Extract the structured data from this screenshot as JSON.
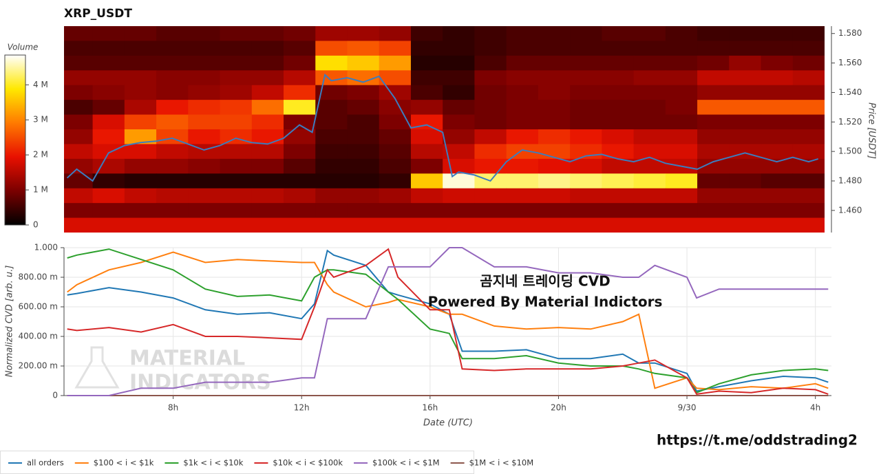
{
  "chart_data": [
    {
      "type": "heatmap",
      "title": "XRP_USDT",
      "y_label": "Price [USDT]",
      "xlim": [
        4.6,
        28.5
      ],
      "ylim": [
        1.445,
        1.585
      ],
      "yticks": [
        {
          "value": 1.46,
          "label": "1.460"
        },
        {
          "value": 1.48,
          "label": "1.480"
        },
        {
          "value": 1.5,
          "label": "1.500"
        },
        {
          "value": 1.52,
          "label": "1.520"
        },
        {
          "value": 1.54,
          "label": "1.540"
        },
        {
          "value": 1.56,
          "label": "1.560"
        },
        {
          "value": 1.58,
          "label": "1.580"
        }
      ],
      "x_bins": [
        4.5,
        5.5,
        6.5,
        7.5,
        8.5,
        9.5,
        10.5,
        11.5,
        12.5,
        13.5,
        14.5,
        15.5,
        16.5,
        17.5,
        18.5,
        19.5,
        20.5,
        21.5,
        22.5,
        23.5,
        24.5,
        25.5,
        26.5,
        27.5,
        28.5
      ],
      "y": [
        1.58,
        1.57,
        1.56,
        1.55,
        1.54,
        1.53,
        1.52,
        1.51,
        1.5,
        1.49,
        1.48,
        1.47,
        1.46,
        1.45
      ],
      "z": [
        [
          800000.0,
          800000.0,
          800000.0,
          700000.0,
          700000.0,
          800000.0,
          800000.0,
          900000.0,
          1300000.0,
          1300000.0,
          1200000.0,
          500000.0,
          400000.0,
          500000.0,
          600000.0,
          600000.0,
          600000.0,
          700000.0,
          700000.0,
          600000.0,
          500000.0,
          500000.0,
          500000.0,
          500000.0
        ],
        [
          600000.0,
          600000.0,
          600000.0,
          600000.0,
          600000.0,
          600000.0,
          600000.0,
          700000.0,
          2500000.0,
          2600000.0,
          2400000.0,
          400000.0,
          400000.0,
          500000.0,
          600000.0,
          600000.0,
          600000.0,
          600000.0,
          600000.0,
          600000.0,
          600000.0,
          600000.0,
          600000.0,
          600000.0
        ],
        [
          700000.0,
          700000.0,
          700000.0,
          700000.0,
          700000.0,
          700000.0,
          700000.0,
          900000.0,
          3800000.0,
          3600000.0,
          3200000.0,
          300000.0,
          300000.0,
          600000.0,
          800000.0,
          800000.0,
          800000.0,
          800000.0,
          800000.0,
          800000.0,
          900000.0,
          1200000.0,
          1000000.0,
          900000.0
        ],
        [
          1200000.0,
          1200000.0,
          1200000.0,
          1100000.0,
          1100000.0,
          1200000.0,
          1200000.0,
          1500000.0,
          2600000.0,
          2800000.0,
          2500000.0,
          500000.0,
          500000.0,
          1000000.0,
          1100000.0,
          1100000.0,
          1100000.0,
          1100000.0,
          1200000.0,
          1200000.0,
          1600000.0,
          1600000.0,
          1600000.0,
          1500000.0
        ],
        [
          1000000.0,
          1100000.0,
          1200000.0,
          1100000.0,
          1200000.0,
          1300000.0,
          1600000.0,
          2200000.0,
          900000.0,
          1000000.0,
          1300000.0,
          600000.0,
          400000.0,
          900000.0,
          1000000.0,
          1100000.0,
          1000000.0,
          1000000.0,
          1000000.0,
          1000000.0,
          1200000.0,
          1200000.0,
          1200000.0,
          1200000.0
        ],
        [
          600000.0,
          800000.0,
          1400000.0,
          2000000.0,
          2200000.0,
          2300000.0,
          2800000.0,
          4000000.0,
          700000.0,
          800000.0,
          1100000.0,
          1200000.0,
          800000.0,
          900000.0,
          1000000.0,
          1000000.0,
          900000.0,
          900000.0,
          900000.0,
          1000000.0,
          2600000.0,
          2600000.0,
          2600000.0,
          2600000.0
        ],
        [
          1000000.0,
          1800000.0,
          2400000.0,
          2600000.0,
          2400000.0,
          2400000.0,
          2200000.0,
          1000000.0,
          700000.0,
          600000.0,
          1000000.0,
          2000000.0,
          1000000.0,
          900000.0,
          1000000.0,
          1000000.0,
          900000.0,
          900000.0,
          900000.0,
          900000.0,
          1000000.0,
          1000000.0,
          1000000.0,
          1000000.0
        ],
        [
          1200000.0,
          2000000.0,
          3200000.0,
          2400000.0,
          2000000.0,
          2200000.0,
          2000000.0,
          1200000.0,
          600000.0,
          600000.0,
          800000.0,
          1800000.0,
          1200000.0,
          1600000.0,
          2000000.0,
          2200000.0,
          2000000.0,
          1800000.0,
          1600000.0,
          1600000.0,
          1200000.0,
          1200000.0,
          1200000.0,
          1200000.0
        ],
        [
          1600000.0,
          1800000.0,
          1800000.0,
          1600000.0,
          1500000.0,
          1500000.0,
          1500000.0,
          1000000.0,
          500000.0,
          500000.0,
          700000.0,
          1500000.0,
          1600000.0,
          2200000.0,
          2400000.0,
          2400000.0,
          2200000.0,
          2000000.0,
          1800000.0,
          1800000.0,
          1400000.0,
          1400000.0,
          1400000.0,
          1400000.0
        ],
        [
          1200000.0,
          1400000.0,
          1200000.0,
          1200000.0,
          1100000.0,
          1000000.0,
          1000000.0,
          700000.0,
          400000.0,
          400000.0,
          600000.0,
          1000000.0,
          1800000.0,
          2000000.0,
          2000000.0,
          1900000.0,
          1800000.0,
          1600000.0,
          1600000.0,
          1600000.0,
          1200000.0,
          1200000.0,
          1200000.0,
          1200000.0
        ],
        [
          800000.0,
          400000.0,
          300000.0,
          300000.0,
          300000.0,
          300000.0,
          300000.0,
          300000.0,
          300000.0,
          300000.0,
          400000.0,
          3600000.0,
          4700000.0,
          4300000.0,
          4300000.0,
          4400000.0,
          4300000.0,
          4200000.0,
          4100000.0,
          4000000.0,
          800000.0,
          800000.0,
          700000.0,
          700000.0
        ],
        [
          1600000.0,
          1800000.0,
          1600000.0,
          1500000.0,
          1500000.0,
          1500000.0,
          1500000.0,
          1400000.0,
          1200000.0,
          1200000.0,
          1300000.0,
          1600000.0,
          1700000.0,
          1700000.0,
          1700000.0,
          1700000.0,
          1600000.0,
          1600000.0,
          1600000.0,
          1600000.0,
          1200000.0,
          1200000.0,
          1200000.0,
          1200000.0
        ],
        [
          1000000.0,
          1000000.0,
          1000000.0,
          1000000.0,
          1000000.0,
          1000000.0,
          1000000.0,
          1000000.0,
          1000000.0,
          1000000.0,
          1000000.0,
          1000000.0,
          1000000.0,
          1000000.0,
          1000000.0,
          1000000.0,
          1000000.0,
          1000000.0,
          1000000.0,
          1000000.0,
          1000000.0,
          1000000.0,
          1000000.0,
          1000000.0
        ],
        [
          1800000.0,
          1800000.0,
          1800000.0,
          1800000.0,
          1800000.0,
          1800000.0,
          1800000.0,
          1800000.0,
          1800000.0,
          1800000.0,
          1800000.0,
          1800000.0,
          1800000.0,
          1800000.0,
          1800000.0,
          1800000.0,
          1800000.0,
          1800000.0,
          1800000.0,
          1800000.0,
          1800000.0,
          1800000.0,
          1800000.0,
          1800000.0
        ]
      ],
      "colorbar": {
        "title": "Volume",
        "lim": [
          0,
          4850000
        ],
        "ticks": [
          0,
          {
            "value": 1000000,
            "label": "1 M"
          },
          {
            "value": 2000000,
            "label": "2 M"
          },
          {
            "value": 3000000,
            "label": "3 M"
          },
          {
            "value": 4000000,
            "label": "4 M"
          }
        ],
        "colors": [
          "#000000",
          "#7a0000",
          "#e81000",
          "#ff7a00",
          "#ffe800",
          "#ffffff"
        ]
      },
      "line": {
        "color": "#3b7dbf",
        "x": [
          4.7,
          5,
          5.5,
          6,
          6.5,
          7,
          7.5,
          8,
          8.5,
          9,
          9.5,
          10,
          10.5,
          11,
          11.5,
          12,
          12.4,
          12.8,
          13,
          13.5,
          14,
          14.5,
          15,
          15.5,
          16,
          16.5,
          16.8,
          17,
          17.5,
          18,
          18.5,
          19,
          19.5,
          20,
          20.5,
          21,
          21.5,
          22,
          22.5,
          23,
          23.5,
          24,
          24.5,
          25,
          25.5,
          26,
          26.5,
          27,
          27.5,
          28,
          28.3
        ],
        "values": [
          1.482,
          1.488,
          1.48,
          1.499,
          1.504,
          1.506,
          1.507,
          1.509,
          1.505,
          1.501,
          1.504,
          1.509,
          1.506,
          1.505,
          1.509,
          1.518,
          1.513,
          1.552,
          1.548,
          1.55,
          1.547,
          1.551,
          1.536,
          1.516,
          1.518,
          1.513,
          1.483,
          1.486,
          1.484,
          1.48,
          1.493,
          1.501,
          1.499,
          1.496,
          1.493,
          1.497,
          1.498,
          1.495,
          1.493,
          1.496,
          1.492,
          1.49,
          1.488,
          1.493,
          1.496,
          1.499,
          1.496,
          1.493,
          1.496,
          1.493,
          1.495
        ]
      }
    },
    {
      "type": "line",
      "x_label": "Date (UTC)",
      "y_label": "Normalized CVD [arb. u.]",
      "xlim": [
        4.6,
        28.5
      ],
      "ylim": [
        0,
        1
      ],
      "xticks": [
        {
          "value": 8,
          "label": "8h"
        },
        {
          "value": 12,
          "label": "12h"
        },
        {
          "value": 16,
          "label": "16h"
        },
        {
          "value": 20,
          "label": "20h"
        },
        {
          "value": 24,
          "label": "9/30"
        },
        {
          "value": 28,
          "label": "4h"
        }
      ],
      "yticks": [
        0,
        {
          "value": 0.2,
          "label": "200.00 m"
        },
        {
          "value": 0.4,
          "label": "400.00 m"
        },
        {
          "value": 0.6,
          "label": "600.00 m"
        },
        {
          "value": 0.8,
          "label": "800.00 m"
        },
        {
          "value": 1,
          "label": "1.000"
        }
      ],
      "grid": true,
      "legend": "bottom",
      "annotations": [
        "곰지네 트레이딩 CVD",
        "Powered By Material Indictors"
      ],
      "x": [
        4.7,
        5,
        6,
        7,
        8,
        9,
        10,
        11,
        12,
        12.4,
        12.8,
        13,
        14,
        14.7,
        15,
        16,
        16.6,
        17,
        18,
        19,
        20,
        21,
        22,
        22.5,
        23,
        24,
        24.3,
        25,
        26,
        27,
        28,
        28.4
      ],
      "series": [
        {
          "name": "$1M < i < $10M",
          "color": "#8c564b",
          "values": [
            0,
            0,
            0,
            0,
            0,
            0,
            0,
            0,
            0,
            0,
            0,
            0,
            0,
            0,
            0,
            0,
            0,
            0,
            0,
            0,
            0,
            0,
            0,
            0,
            0,
            0,
            0,
            0,
            0,
            0,
            0,
            0
          ]
        },
        {
          "name": "all orders",
          "color": "#1f77b4",
          "values": [
            0.68,
            0.69,
            0.73,
            0.7,
            0.66,
            0.58,
            0.55,
            0.56,
            0.52,
            0.62,
            0.98,
            0.95,
            0.88,
            0.7,
            0.68,
            0.62,
            0.55,
            0.3,
            0.3,
            0.31,
            0.25,
            0.25,
            0.28,
            0.22,
            0.22,
            0.15,
            0.03,
            0.06,
            0.1,
            0.13,
            0.12,
            0.09
          ]
        },
        {
          "name": "$100 < i < $1k",
          "color": "#ff7f0e",
          "values": [
            0.7,
            0.75,
            0.85,
            0.9,
            0.97,
            0.9,
            0.92,
            0.91,
            0.9,
            0.9,
            0.75,
            0.7,
            0.6,
            0.63,
            0.65,
            0.6,
            0.55,
            0.55,
            0.47,
            0.45,
            0.46,
            0.45,
            0.5,
            0.55,
            0.05,
            0.12,
            0.05,
            0.04,
            0.06,
            0.05,
            0.08,
            0.05
          ]
        },
        {
          "name": "$1k < i < $10k",
          "color": "#2ca02c",
          "values": [
            0.93,
            0.95,
            0.99,
            0.92,
            0.85,
            0.72,
            0.67,
            0.68,
            0.64,
            0.8,
            0.85,
            0.85,
            0.82,
            0.7,
            0.65,
            0.45,
            0.42,
            0.25,
            0.25,
            0.27,
            0.22,
            0.2,
            0.2,
            0.18,
            0.15,
            0.12,
            0.02,
            0.08,
            0.14,
            0.17,
            0.18,
            0.17
          ]
        },
        {
          "name": "$10k < i < $100k",
          "color": "#d62728",
          "values": [
            0.45,
            0.44,
            0.46,
            0.43,
            0.48,
            0.4,
            0.4,
            0.39,
            0.38,
            0.6,
            0.85,
            0.8,
            0.88,
            0.99,
            0.8,
            0.58,
            0.58,
            0.18,
            0.17,
            0.18,
            0.18,
            0.18,
            0.2,
            0.22,
            0.24,
            0.12,
            0.01,
            0.03,
            0.02,
            0.05,
            0.04,
            0.01
          ]
        },
        {
          "name": "$100k < i < $1M",
          "color": "#9467bd",
          "values": [
            0,
            0,
            0,
            0.05,
            0.05,
            0.09,
            0.09,
            0.09,
            0.12,
            0.12,
            0.52,
            0.52,
            0.52,
            0.87,
            0.87,
            0.87,
            1,
            1,
            0.87,
            0.87,
            0.83,
            0.83,
            0.8,
            0.8,
            0.88,
            0.8,
            0.66,
            0.72,
            0.72,
            0.72,
            0.72,
            0.72
          ]
        }
      ]
    }
  ],
  "watermark": [
    "MATERIAL",
    "INDICATORS"
  ],
  "footer_link": "https://t.me/oddstrading2"
}
